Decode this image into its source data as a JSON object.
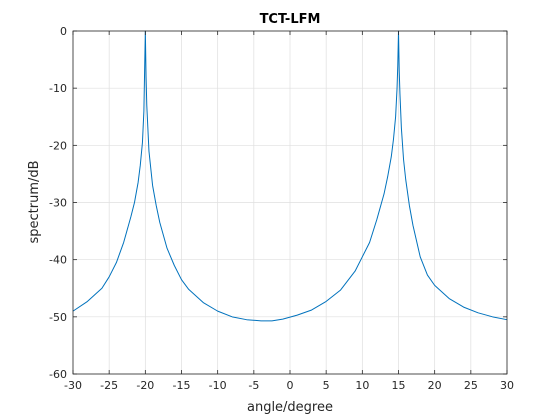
{
  "chart_data": {
    "type": "line",
    "title": "TCT-LFM",
    "xlabel": "angle/degree",
    "ylabel": "spectrum/dB",
    "xlim": [
      -30,
      30
    ],
    "ylim": [
      -60,
      0
    ],
    "xticks": [
      -30,
      -25,
      -20,
      -15,
      -10,
      -5,
      0,
      5,
      10,
      15,
      20,
      25,
      30
    ],
    "yticks": [
      0,
      -10,
      -20,
      -30,
      -40,
      -50,
      -60
    ],
    "grid": true,
    "line_color": "#0072bd",
    "series": [
      {
        "name": "",
        "x": [
          -30,
          -28,
          -26,
          -25,
          -24,
          -23,
          -22,
          -21.5,
          -21,
          -20.7,
          -20.4,
          -20.2,
          -20.1,
          -20,
          -19.9,
          -19.8,
          -19.5,
          -19,
          -18.5,
          -18,
          -17,
          -16,
          -15,
          -14,
          -12,
          -10,
          -8,
          -6,
          -4,
          -2.5,
          -1,
          1,
          3,
          5,
          7,
          9,
          10,
          11,
          12,
          13,
          13.5,
          14,
          14.3,
          14.6,
          14.8,
          14.9,
          15,
          15.1,
          15.2,
          15.4,
          15.7,
          16,
          16.5,
          17,
          18,
          19,
          20,
          22,
          24,
          26,
          28,
          30
        ],
        "y": [
          -49,
          -47.3,
          -45,
          -43,
          -40.5,
          -37,
          -32.5,
          -30,
          -26.5,
          -23.5,
          -19.5,
          -14,
          -7,
          0,
          -8,
          -13,
          -21,
          -27,
          -30.5,
          -33.5,
          -38,
          -41,
          -43.5,
          -45.2,
          -47.5,
          -49,
          -50,
          -50.5,
          -50.7,
          -50.7,
          -50.4,
          -49.7,
          -48.8,
          -47.3,
          -45.3,
          -42,
          -39.5,
          -37,
          -33,
          -28.5,
          -25.5,
          -22,
          -19,
          -15,
          -10,
          -6,
          0,
          -7,
          -11,
          -17,
          -22.5,
          -26,
          -30.5,
          -34,
          -39.5,
          -42.7,
          -44.5,
          -46.8,
          -48.3,
          -49.3,
          -50,
          -50.5
        ]
      }
    ]
  }
}
